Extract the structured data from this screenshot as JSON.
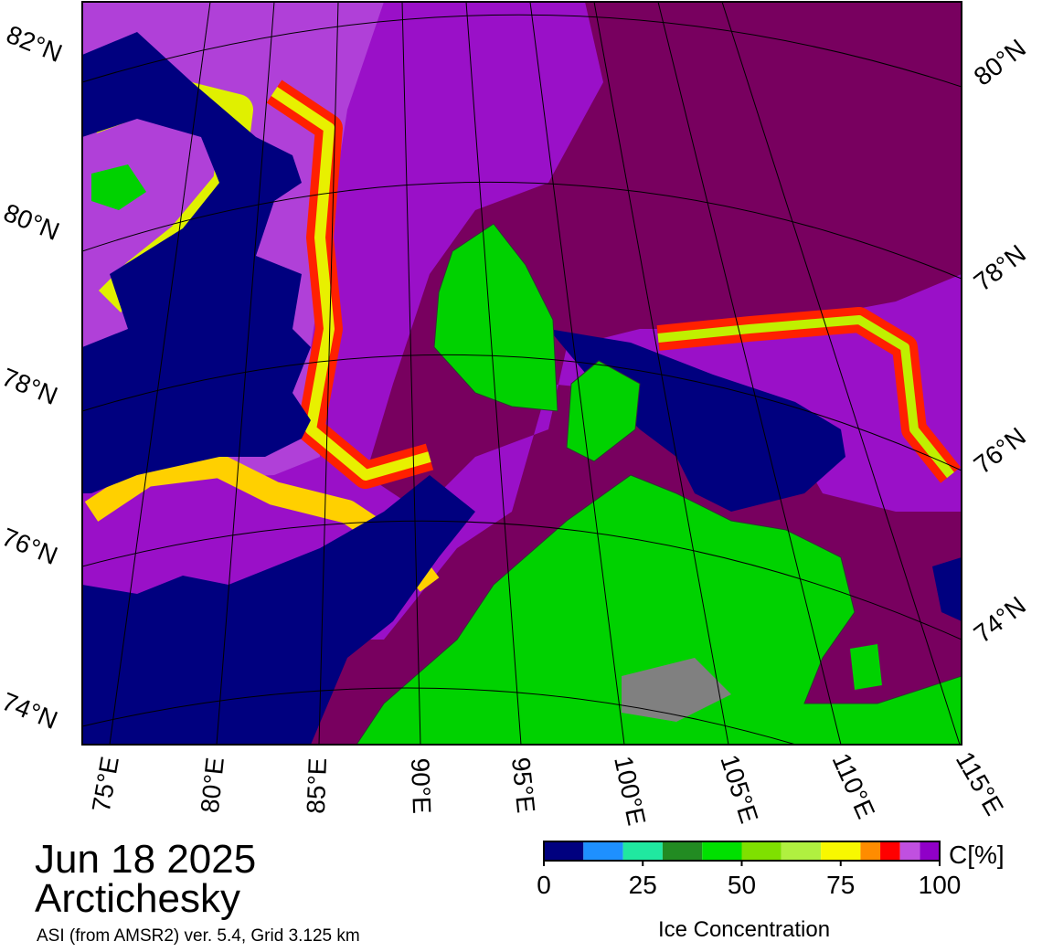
{
  "header": {
    "date": "Jun 18 2025",
    "region": "Arctichesky",
    "source": "ASI (from AMSR2) ver. 5.4,  Grid 3.125 km"
  },
  "map": {
    "lat_labels_left": [
      "82°N",
      "80°N",
      "78°N",
      "76°N",
      "74°N"
    ],
    "lat_labels_right": [
      "80°N",
      "78°N",
      "76°N",
      "74°N"
    ],
    "lon_labels": [
      "75°E",
      "80°E",
      "85°E",
      "90°E",
      "95°E",
      "100°E",
      "105°E",
      "110°E",
      "115°E"
    ]
  },
  "colorbar": {
    "unit_label": "C[%]",
    "title": "Ice Concentration",
    "range": [
      0,
      100
    ],
    "ticks": [
      0,
      25,
      50,
      75,
      100
    ],
    "bounds": [
      0,
      10,
      20,
      30,
      40,
      50,
      60,
      70,
      80,
      85,
      90,
      95,
      100
    ],
    "colors": [
      "#00007f",
      "#1e90ff",
      "#20e8a0",
      "#228b22",
      "#00e000",
      "#7fe000",
      "#b0f040",
      "#f8f800",
      "#ff8c00",
      "#ff0000",
      "#c050e0",
      "#9000c8"
    ]
  }
}
